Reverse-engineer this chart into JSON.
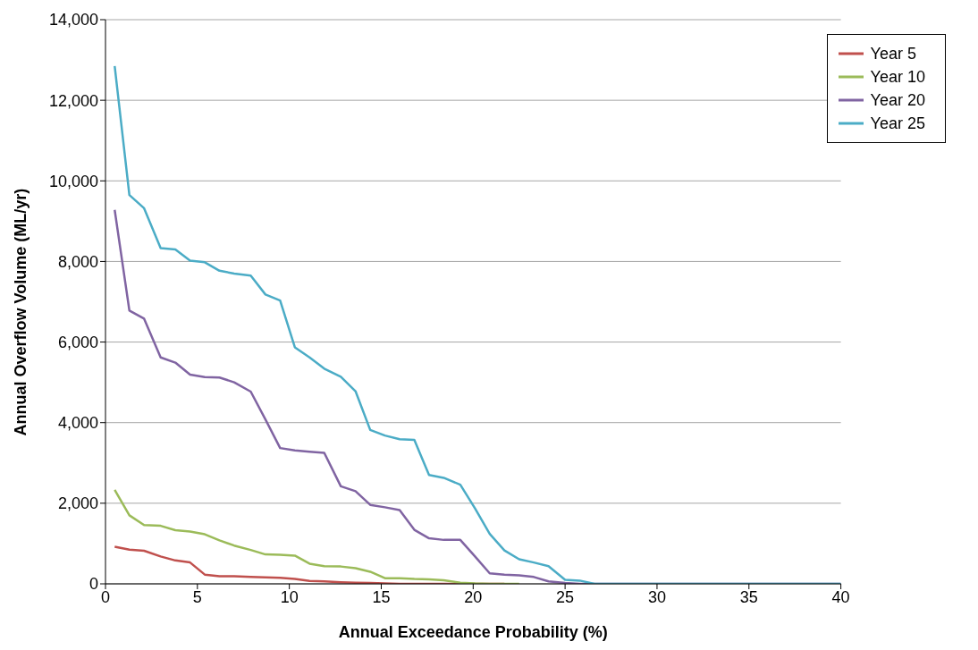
{
  "chart_data": {
    "type": "line",
    "xlabel": "Annual Exceedance Probability (%)",
    "ylabel": "Annual Overflow Volume (ML/yr)",
    "x": [
      0.5,
      1.3,
      2.1,
      3.0,
      3.8,
      4.6,
      5.4,
      6.2,
      7.0,
      7.9,
      8.7,
      9.5,
      10.3,
      11.1,
      11.9,
      12.8,
      13.6,
      14.4,
      15.2,
      16.0,
      16.8,
      17.6,
      18.4,
      19.3,
      20.1,
      20.9,
      21.7,
      22.5,
      23.3,
      24.1,
      25.0,
      25.8,
      26.6,
      40
    ],
    "series": [
      {
        "name": "Year 5",
        "color": "#c0504d",
        "values": [
          920,
          850,
          820,
          680,
          580,
          530,
          230,
          190,
          190,
          170,
          160,
          150,
          120,
          70,
          60,
          40,
          30,
          20,
          10,
          0,
          0,
          0,
          0,
          0,
          0,
          0,
          0,
          null,
          null,
          null,
          null,
          null,
          null,
          null
        ]
      },
      {
        "name": "Year 10",
        "color": "#9bbb59",
        "values": [
          2330,
          1700,
          1460,
          1440,
          1330,
          1300,
          1230,
          1080,
          950,
          840,
          730,
          720,
          700,
          500,
          440,
          430,
          390,
          300,
          140,
          140,
          120,
          110,
          90,
          30,
          10,
          0,
          0,
          0,
          null,
          null,
          null,
          null,
          null,
          null
        ]
      },
      {
        "name": "Year 20",
        "color": "#8064a2",
        "values": [
          9280,
          6780,
          6580,
          5620,
          5490,
          5190,
          5130,
          5120,
          5000,
          4770,
          4080,
          3370,
          3310,
          3280,
          3250,
          2420,
          2300,
          1960,
          1900,
          1830,
          1340,
          1130,
          1090,
          1090,
          680,
          260,
          230,
          210,
          170,
          60,
          20,
          0,
          0,
          0
        ]
      },
      {
        "name": "Year 25",
        "color": "#4bacc6",
        "values": [
          12850,
          9650,
          9320,
          8330,
          8300,
          8020,
          7980,
          7770,
          7700,
          7650,
          7180,
          7030,
          5870,
          5620,
          5340,
          5140,
          4780,
          3820,
          3680,
          3590,
          3570,
          2700,
          2630,
          2460,
          1870,
          1240,
          830,
          610,
          530,
          440,
          100,
          80,
          0,
          0
        ]
      }
    ],
    "xlim": [
      0,
      40
    ],
    "xticks": [
      0,
      5,
      10,
      15,
      20,
      25,
      30,
      35,
      40
    ],
    "ylim": [
      0,
      14000
    ],
    "yticks": [
      0,
      {
        "value": 2000,
        "label": "2,000"
      },
      {
        "value": 4000,
        "label": "4,000"
      },
      {
        "value": 6000,
        "label": "6,000"
      },
      {
        "value": 8000,
        "label": "8,000"
      },
      {
        "value": 10000,
        "label": "10,000"
      },
      {
        "value": 12000,
        "label": "12,000"
      },
      {
        "value": 14000,
        "label": "14,000"
      }
    ],
    "grid": "y",
    "legend": "top right",
    "marker": "none",
    "line_style": "solid"
  }
}
